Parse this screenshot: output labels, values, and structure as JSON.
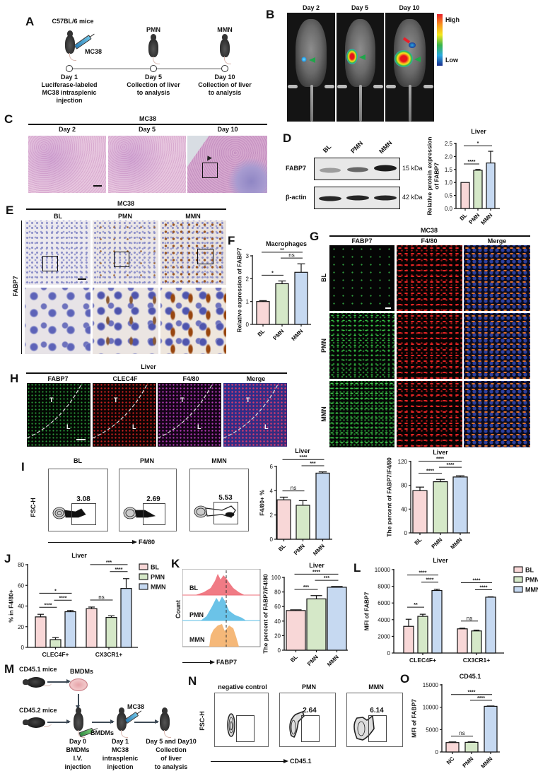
{
  "colors": {
    "BL": "#f8d7d7",
    "PMN": "#d5e8c8",
    "MMN": "#c6d9f1",
    "NC": "#f8d7d7"
  },
  "A": {
    "label": "A",
    "strain": "C57BL/6 mice",
    "tumor": "MC38",
    "stages": [
      {
        "header": "",
        "lines": [
          "Day 1",
          "Luciferase-labeled",
          "MC38 intrasplenic",
          "injection"
        ]
      },
      {
        "header": "PMN",
        "lines": [
          "Day 5",
          "Collection of liver",
          "to analysis"
        ]
      },
      {
        "header": "MMN",
        "lines": [
          "Day 10",
          "Collection of liver",
          "to analysis"
        ]
      }
    ]
  },
  "B": {
    "label": "B",
    "days": [
      "Day 2",
      "Day 5",
      "Day 10"
    ],
    "scale_high": "High",
    "scale_low": "Low"
  },
  "C": {
    "label": "C",
    "title": "MC38",
    "days": [
      "Day 2",
      "Day 5",
      "Day 10"
    ]
  },
  "D": {
    "label": "D",
    "lanes": [
      "BL",
      "PMN",
      "MMN"
    ],
    "rows": [
      {
        "protein": "FABP7",
        "size": "15 kDa",
        "intensity": [
          0.35,
          0.6,
          0.95
        ]
      },
      {
        "protein": "β-actin",
        "size": "42 kDa",
        "intensity": [
          0.9,
          0.9,
          0.9
        ]
      }
    ]
  },
  "E": {
    "label": "E",
    "title": "MC38",
    "columns": [
      "BL",
      "PMN",
      "MMN"
    ],
    "row_label": "FABP7"
  },
  "F": {
    "label": "F"
  },
  "G": {
    "label": "G",
    "title": "MC38",
    "columns": [
      "FABP7",
      "F4/80",
      "Merge"
    ],
    "rows": [
      "BL",
      "PMN",
      "MMN"
    ]
  },
  "H": {
    "label": "H",
    "title": "Liver",
    "columns": [
      "FABP7",
      "CLEC4F",
      "F4/80",
      "Merge"
    ],
    "regions": [
      "T",
      "L"
    ]
  },
  "I": {
    "label": "I",
    "plots": [
      {
        "title": "BL",
        "gate_value": "3.08"
      },
      {
        "title": "PMN",
        "gate_value": "2.69"
      },
      {
        "title": "MMN",
        "gate_value": "5.53"
      }
    ],
    "y_axis": "FSC-H",
    "x_axis": "F4/80"
  },
  "J": {
    "label": "J"
  },
  "K": {
    "label": "K",
    "histogram": {
      "samples": [
        "BL",
        "PMN",
        "MMN"
      ],
      "colors": [
        "#ee6d78",
        "#5bbde6",
        "#f4b06a"
      ],
      "y_axis": "Count",
      "x_axis": "FABP7"
    }
  },
  "L": {
    "label": "L"
  },
  "M": {
    "label": "M",
    "donor": "CD45.1 mice",
    "cells": "BMDMs",
    "recipient": "CD45.2 mice",
    "injected_cells": "BMDMs",
    "tumor": "MC38",
    "steps": [
      [
        "Day 0",
        "BMDMs",
        "I.V.",
        "injection"
      ],
      [
        "Day 1",
        "MC38",
        "intrasplenic",
        "injection"
      ],
      [
        "Day 5 and Day10",
        "Collection",
        "of liver",
        "to analysis"
      ]
    ]
  },
  "N": {
    "label": "N",
    "plots": [
      {
        "title": "negative control",
        "gate_value": ""
      },
      {
        "title": "PMN",
        "gate_value": "2.64"
      },
      {
        "title": "MMN",
        "gate_value": "6.14"
      }
    ],
    "y_axis": "FSC-H",
    "x_axis": "CD45.1"
  },
  "O": {
    "label": "O"
  },
  "chart_data": [
    {
      "panel": "D",
      "type": "bar",
      "title": "Liver",
      "ylabel": [
        "Relative protein expression",
        "of FABP7"
      ],
      "categories": [
        "BL",
        "PMN",
        "MMN"
      ],
      "values": [
        1.0,
        1.47,
        1.75
      ],
      "errors": [
        0.0,
        0.03,
        0.45
      ],
      "ylim": [
        0,
        2.5
      ],
      "yticks": [
        "0.0",
        "0.5",
        "1.0",
        "1.5",
        "2.0",
        "2.5"
      ],
      "significance": [
        {
          "from": 0,
          "to": 1,
          "label": "****"
        },
        {
          "from": 0,
          "to": 2,
          "label": "*"
        }
      ]
    },
    {
      "panel": "F",
      "type": "bar",
      "title": "Macrophages",
      "ylabel": [
        "Relative expression of FABP7"
      ],
      "categories": [
        "BL",
        "PMN",
        "MMN"
      ],
      "values": [
        1.0,
        1.78,
        2.28
      ],
      "errors": [
        0.04,
        0.12,
        0.37
      ],
      "ylim": [
        0,
        3
      ],
      "yticks": [
        "0",
        "1",
        "2",
        "3"
      ],
      "significance": [
        {
          "from": 0,
          "to": 1,
          "label": "*"
        },
        {
          "from": 1,
          "to": 2,
          "label": "ns"
        },
        {
          "from": 0,
          "to": 2,
          "label": "**"
        }
      ]
    },
    {
      "panel": "I",
      "type": "bar",
      "title": "Liver",
      "ylabel": [
        "F4/80+ %"
      ],
      "categories": [
        "BL",
        "PMN",
        "MMN"
      ],
      "values": [
        3.25,
        2.8,
        5.45
      ],
      "errors": [
        0.22,
        0.38,
        0.1
      ],
      "ylim": [
        0,
        6
      ],
      "yticks": [
        "0",
        "2",
        "4",
        "6"
      ],
      "significance": [
        {
          "from": 0,
          "to": 1,
          "label": "ns"
        },
        {
          "from": 1,
          "to": 2,
          "label": "***"
        },
        {
          "from": 0,
          "to": 2,
          "label": "****"
        }
      ]
    },
    {
      "panel": "G",
      "type": "bar",
      "title": "Liver",
      "ylabel": [
        "The percent of  FABP7/F4/80"
      ],
      "categories": [
        "BL",
        "PMN",
        "MMN"
      ],
      "values": [
        71,
        86,
        94
      ],
      "errors": [
        6,
        4,
        2
      ],
      "ylim": [
        0,
        120
      ],
      "yticks": [
        "0",
        "40",
        "80",
        "120"
      ],
      "significance": [
        {
          "from": 0,
          "to": 1,
          "label": "****"
        },
        {
          "from": 1,
          "to": 2,
          "label": "****"
        },
        {
          "from": 0,
          "to": 2,
          "label": "****"
        }
      ]
    },
    {
      "panel": "J",
      "type": "grouped-bar",
      "title": "Liver",
      "ylabel": [
        "% in F4/80+"
      ],
      "groups": [
        "CLEC4F+",
        "CX3CR1+"
      ],
      "series": [
        {
          "name": "BL",
          "values": [
            29.5,
            37.5
          ],
          "errors": [
            2.5,
            1.5
          ]
        },
        {
          "name": "PMN",
          "values": [
            7.5,
            29
          ],
          "errors": [
            2,
            1.5
          ]
        },
        {
          "name": "MMN",
          "values": [
            34.5,
            57
          ],
          "errors": [
            1.2,
            9.5
          ]
        }
      ],
      "ylim": [
        0,
        80
      ],
      "yticks": [
        "0",
        "20",
        "40",
        "60",
        "80"
      ],
      "legend": "top-right",
      "significance": [
        [
          {
            "from": 0,
            "to": 1,
            "label": "****"
          },
          {
            "from": 1,
            "to": 2,
            "label": "****"
          },
          {
            "from": 0,
            "to": 2,
            "label": "*"
          }
        ],
        [
          {
            "from": 0,
            "to": 1,
            "label": "ns"
          },
          {
            "from": 1,
            "to": 2,
            "label": "****"
          },
          {
            "from": 0,
            "to": 2,
            "label": "***"
          }
        ]
      ]
    },
    {
      "panel": "K",
      "type": "bar",
      "title": "Liver",
      "ylabel": [
        "The percent of  FABP7/F4/80"
      ],
      "categories": [
        "BL",
        "PMN",
        "MMN"
      ],
      "values": [
        54.5,
        70.5,
        86.5
      ],
      "errors": [
        1,
        4.5,
        1
      ],
      "ylim": [
        0,
        100
      ],
      "yticks": [
        "0",
        "20",
        "40",
        "60",
        "80",
        "100"
      ],
      "significance": [
        {
          "from": 0,
          "to": 1,
          "label": "***"
        },
        {
          "from": 1,
          "to": 2,
          "label": "***"
        },
        {
          "from": 0,
          "to": 2,
          "label": "****"
        }
      ]
    },
    {
      "panel": "L",
      "type": "grouped-bar",
      "title": "Liver",
      "ylabel": [
        "MFI of FABP7"
      ],
      "groups": [
        "CLEC4F+",
        "CX3CR1+"
      ],
      "series": [
        {
          "name": "BL",
          "values": [
            3200,
            2900
          ],
          "errors": [
            850,
            80
          ]
        },
        {
          "name": "PMN",
          "values": [
            4400,
            2650
          ],
          "errors": [
            250,
            100
          ]
        },
        {
          "name": "MMN",
          "values": [
            7500,
            6700
          ],
          "errors": [
            150,
            40
          ]
        }
      ],
      "ylim": [
        0,
        10000
      ],
      "yticks": [
        "0",
        "2000",
        "4000",
        "6000",
        "8000",
        "10000"
      ],
      "legend": "top-right",
      "significance": [
        [
          {
            "from": 0,
            "to": 1,
            "label": "**"
          },
          {
            "from": 1,
            "to": 2,
            "label": "****"
          },
          {
            "from": 0,
            "to": 2,
            "label": "****"
          }
        ],
        [
          {
            "from": 0,
            "to": 1,
            "label": "ns"
          },
          {
            "from": 1,
            "to": 2,
            "label": "****"
          },
          {
            "from": 0,
            "to": 2,
            "label": "****"
          }
        ]
      ]
    },
    {
      "panel": "O",
      "type": "bar",
      "title": "CD45.1",
      "ylabel": [
        "MFI of FABP7"
      ],
      "categories": [
        "NC",
        "PMN",
        "MMN"
      ],
      "values": [
        2100,
        2150,
        10200
      ],
      "errors": [
        150,
        120,
        80
      ],
      "ylim": [
        0,
        15000
      ],
      "yticks": [
        "0",
        "5000",
        "10000",
        "15000"
      ],
      "significance": [
        {
          "from": 0,
          "to": 1,
          "label": "ns"
        },
        {
          "from": 1,
          "to": 2,
          "label": "****"
        },
        {
          "from": 0,
          "to": 2,
          "label": "****"
        }
      ]
    }
  ]
}
